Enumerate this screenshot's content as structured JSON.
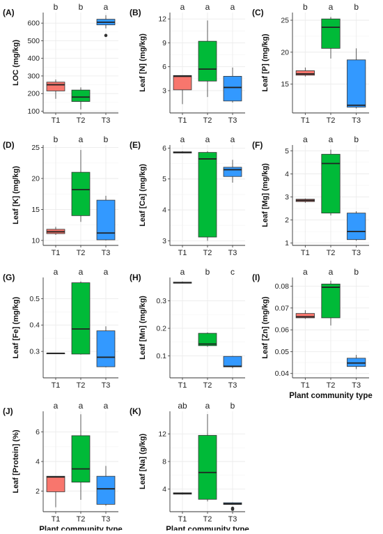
{
  "colors": {
    "T1": "#F8766D",
    "T2": "#00BA38",
    "T3": "#3399FF",
    "grid": "#EBEBEB",
    "axis": "#333333"
  },
  "common_xlabel": "Plant community type",
  "chart_data": [
    {
      "type": "boxplot",
      "panel": "(A)",
      "ylabel": "LOC (mg/kg)",
      "ylim": [
        90,
        660
      ],
      "yticks": [
        100,
        200,
        300,
        400,
        500,
        600
      ],
      "categories": [
        "T1",
        "T2",
        "T3"
      ],
      "letters": [
        "b",
        "b",
        "a"
      ],
      "show_xlabel": false,
      "boxes": [
        {
          "min": 170,
          "q1": 215,
          "median": 250,
          "q3": 265,
          "max": 280,
          "outliers": []
        },
        {
          "min": 110,
          "q1": 155,
          "median": 180,
          "q3": 220,
          "max": 235,
          "outliers": []
        },
        {
          "min": 570,
          "q1": 590,
          "median": 605,
          "q3": 622,
          "max": 645,
          "outliers": [
            530
          ]
        }
      ]
    },
    {
      "type": "boxplot",
      "panel": "(B)",
      "ylabel": "Leaf [N] (mg/kg)",
      "ylim": [
        0.2,
        12.8
      ],
      "yticks": [
        3,
        6,
        9,
        12
      ],
      "categories": [
        "T1",
        "T2",
        "T3"
      ],
      "letters": [
        "a",
        "a",
        "a"
      ],
      "show_xlabel": false,
      "boxes": [
        {
          "min": 1.3,
          "q1": 3.1,
          "median": 4.8,
          "q3": 4.9,
          "max": 4.9,
          "outliers": []
        },
        {
          "min": 2.2,
          "q1": 4.2,
          "median": 5.7,
          "q3": 9.2,
          "max": 11.8,
          "outliers": []
        },
        {
          "min": 1.5,
          "q1": 1.7,
          "median": 3.4,
          "q3": 4.8,
          "max": 5.9,
          "outliers": []
        }
      ]
    },
    {
      "type": "boxplot",
      "panel": "(C)",
      "ylabel": "Leaf [P] (mg/kg)",
      "ylim": [
        10.5,
        26.2
      ],
      "yticks": [
        15,
        20,
        25
      ],
      "categories": [
        "T1",
        "T2",
        "T3"
      ],
      "letters": [
        "b",
        "a",
        "b"
      ],
      "show_xlabel": false,
      "boxes": [
        {
          "min": 16.2,
          "q1": 16.4,
          "median": 16.6,
          "q3": 17.1,
          "max": 17.6,
          "outliers": []
        },
        {
          "min": 19.0,
          "q1": 20.6,
          "median": 23.9,
          "q3": 25.2,
          "max": 25.5,
          "outliers": []
        },
        {
          "min": 11.2,
          "q1": 11.4,
          "median": 11.7,
          "q3": 18.8,
          "max": 20.6,
          "outliers": []
        }
      ]
    },
    {
      "type": "boxplot",
      "panel": "(D)",
      "ylabel": "Leaf [K] (mg/kg)",
      "ylim": [
        9.2,
        25.4
      ],
      "yticks": [
        10,
        15,
        20,
        25
      ],
      "categories": [
        "T1",
        "T2",
        "T3"
      ],
      "letters": [
        "b",
        "a",
        "b"
      ],
      "show_xlabel": false,
      "boxes": [
        {
          "min": 10.9,
          "q1": 11.1,
          "median": 11.4,
          "q3": 11.8,
          "max": 12.2,
          "outliers": []
        },
        {
          "min": 13.0,
          "q1": 14.0,
          "median": 18.2,
          "q3": 21.0,
          "max": 24.6,
          "outliers": []
        },
        {
          "min": 10.0,
          "q1": 10.1,
          "median": 11.2,
          "q3": 16.5,
          "max": 17.2,
          "outliers": []
        }
      ]
    },
    {
      "type": "boxplot",
      "panel": "(E)",
      "ylabel": "Leaf [Ca] (mg/kg)",
      "ylim": [
        2.85,
        6.1
      ],
      "yticks": [
        3,
        4,
        5,
        6
      ],
      "categories": [
        "T1",
        "T2",
        "T3"
      ],
      "letters": [
        "a",
        "a",
        "a"
      ],
      "show_xlabel": false,
      "boxes": [
        {
          "min": 5.83,
          "q1": 5.84,
          "median": 5.86,
          "q3": 5.88,
          "max": 5.9,
          "outliers": []
        },
        {
          "min": 3.0,
          "q1": 3.12,
          "median": 5.65,
          "q3": 5.86,
          "max": 5.9,
          "outliers": []
        },
        {
          "min": 4.88,
          "q1": 5.08,
          "median": 5.3,
          "q3": 5.38,
          "max": 5.62,
          "outliers": []
        }
      ]
    },
    {
      "type": "boxplot",
      "panel": "(F)",
      "ylabel": "Leaf [Mg] (mg/kg)",
      "ylim": [
        0.9,
        5.25
      ],
      "yticks": [
        1,
        2,
        3,
        4,
        5
      ],
      "categories": [
        "T1",
        "T2",
        "T3"
      ],
      "letters": [
        "a",
        "a",
        "b"
      ],
      "show_xlabel": false,
      "boxes": [
        {
          "min": 2.75,
          "q1": 2.8,
          "median": 2.85,
          "q3": 2.9,
          "max": 2.93,
          "outliers": []
        },
        {
          "min": 2.2,
          "q1": 2.3,
          "median": 4.45,
          "q3": 4.85,
          "max": 5.05,
          "outliers": []
        },
        {
          "min": 1.1,
          "q1": 1.15,
          "median": 1.5,
          "q3": 2.3,
          "max": 2.38,
          "outliers": []
        }
      ]
    },
    {
      "type": "boxplot",
      "panel": "(G)",
      "ylabel": "Leaf [Fe] (mg/kg)",
      "ylim": [
        0.2,
        0.58
      ],
      "yticks": [
        0.3,
        0.4,
        0.5
      ],
      "categories": [
        "T1",
        "T2",
        "T3"
      ],
      "letters": [
        "a",
        "a",
        "a"
      ],
      "show_xlabel": false,
      "boxes": [
        {
          "min": 0.293,
          "q1": 0.293,
          "median": 0.293,
          "q3": 0.293,
          "max": 0.293,
          "outliers": []
        },
        {
          "min": 0.288,
          "q1": 0.29,
          "median": 0.385,
          "q3": 0.56,
          "max": 0.565,
          "outliers": []
        },
        {
          "min": 0.24,
          "q1": 0.242,
          "median": 0.278,
          "q3": 0.378,
          "max": 0.395,
          "outliers": []
        }
      ]
    },
    {
      "type": "boxplot",
      "panel": "(H)",
      "ylabel": "Leaf [Mn] (mg/kg)",
      "ylim": [
        0.02,
        0.385
      ],
      "yticks": [
        0.1,
        0.2,
        0.3
      ],
      "categories": [
        "T1",
        "T2",
        "T3"
      ],
      "letters": [
        "a",
        "b",
        "c"
      ],
      "show_xlabel": false,
      "boxes": [
        {
          "min": 0.363,
          "q1": 0.364,
          "median": 0.366,
          "q3": 0.368,
          "max": 0.37,
          "outliers": []
        },
        {
          "min": 0.133,
          "q1": 0.137,
          "median": 0.143,
          "q3": 0.182,
          "max": 0.185,
          "outliers": []
        },
        {
          "min": 0.055,
          "q1": 0.06,
          "median": 0.062,
          "q3": 0.098,
          "max": 0.1,
          "outliers": []
        }
      ]
    },
    {
      "type": "boxplot",
      "panel": "(I)",
      "ylabel": "Leaf [Zn] (mg/kg)",
      "ylim": [
        0.038,
        0.084
      ],
      "yticks": [
        0.04,
        0.05,
        0.06,
        0.07,
        0.08
      ],
      "categories": [
        "T1",
        "T2",
        "T3"
      ],
      "letters": [
        "a",
        "a",
        "b"
      ],
      "show_xlabel": true,
      "boxes": [
        {
          "min": 0.065,
          "q1": 0.0655,
          "median": 0.066,
          "q3": 0.0675,
          "max": 0.069,
          "outliers": []
        },
        {
          "min": 0.062,
          "q1": 0.0655,
          "median": 0.0795,
          "q3": 0.081,
          "max": 0.0825,
          "outliers": []
        },
        {
          "min": 0.042,
          "q1": 0.0432,
          "median": 0.0448,
          "q3": 0.047,
          "max": 0.0485,
          "outliers": []
        }
      ]
    },
    {
      "type": "boxplot",
      "panel": "(J)",
      "ylabel": "Leaf [Protein] (%)",
      "ylim": [
        0.6,
        7.4
      ],
      "yticks": [
        2,
        4,
        6
      ],
      "categories": [
        "T1",
        "T2",
        "T3"
      ],
      "letters": [
        "a",
        "a",
        "a"
      ],
      "show_xlabel": true,
      "boxes": [
        {
          "min": 0.9,
          "q1": 1.95,
          "median": 2.95,
          "q3": 3.0,
          "max": 3.0,
          "outliers": []
        },
        {
          "min": 1.4,
          "q1": 2.6,
          "median": 3.5,
          "q3": 5.75,
          "max": 7.2,
          "outliers": []
        },
        {
          "min": 1.0,
          "q1": 1.1,
          "median": 2.15,
          "q3": 3.0,
          "max": 3.7,
          "outliers": []
        }
      ]
    },
    {
      "type": "boxplot",
      "panel": "(K)",
      "ylabel": "Leaf [Na] (g/kg)",
      "ylim": [
        0.7,
        15.3
      ],
      "yticks": [
        4,
        8,
        12
      ],
      "categories": [
        "T1",
        "T2",
        "T3"
      ],
      "letters": [
        "ab",
        "a",
        "b"
      ],
      "show_xlabel": true,
      "boxes": [
        {
          "min": 3.2,
          "q1": 3.25,
          "median": 3.35,
          "q3": 3.45,
          "max": 3.5,
          "outliers": []
        },
        {
          "min": 2.2,
          "q1": 2.5,
          "median": 6.4,
          "q3": 11.8,
          "max": 14.9,
          "outliers": []
        },
        {
          "min": 1.7,
          "q1": 1.75,
          "median": 1.85,
          "q3": 2.0,
          "max": 2.05,
          "outliers": [
            1.2,
            1.05
          ]
        }
      ]
    }
  ]
}
